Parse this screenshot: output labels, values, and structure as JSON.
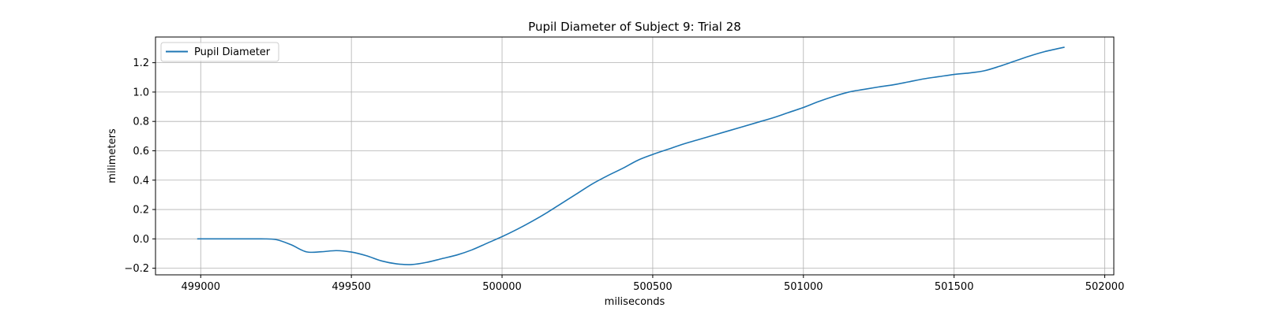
{
  "chart_data": {
    "type": "line",
    "title": "Pupil Diameter of Subject 9: Trial 28",
    "xlabel": "miliseconds",
    "ylabel": "milimeters",
    "xlim": [
      498850,
      502030
    ],
    "ylim": [
      -0.245,
      1.375
    ],
    "xticks": [
      499000,
      499500,
      500000,
      500500,
      501000,
      501500,
      502000
    ],
    "yticks": [
      -0.2,
      0.0,
      0.2,
      0.4,
      0.6,
      0.8,
      1.0,
      1.2
    ],
    "grid": true,
    "legend_position": "top-left",
    "series": [
      {
        "name": "Pupil Diameter",
        "color": "#1f77b4",
        "x": [
          498990,
          499100,
          499200,
          499250,
          499300,
          499350,
          499400,
          499450,
          499500,
          499550,
          499600,
          499650,
          499700,
          499750,
          499800,
          499850,
          499900,
          499950,
          500000,
          500050,
          500100,
          500150,
          500200,
          500250,
          500300,
          500350,
          500400,
          500450,
          500500,
          500550,
          500600,
          500650,
          500700,
          500750,
          500800,
          500850,
          500900,
          500950,
          501000,
          501050,
          501100,
          501150,
          501200,
          501250,
          501300,
          501350,
          501400,
          501450,
          501500,
          501550,
          501600,
          501650,
          501700,
          501750,
          501800,
          501865
        ],
        "y": [
          0.0,
          0.0,
          0.0,
          -0.005,
          -0.04,
          -0.088,
          -0.088,
          -0.08,
          -0.09,
          -0.115,
          -0.15,
          -0.17,
          -0.175,
          -0.16,
          -0.135,
          -0.11,
          -0.075,
          -0.03,
          0.015,
          0.065,
          0.12,
          0.18,
          0.245,
          0.31,
          0.375,
          0.43,
          0.48,
          0.535,
          0.575,
          0.61,
          0.645,
          0.675,
          0.705,
          0.735,
          0.765,
          0.795,
          0.825,
          0.86,
          0.895,
          0.935,
          0.97,
          1.0,
          1.018,
          1.035,
          1.05,
          1.07,
          1.09,
          1.105,
          1.12,
          1.13,
          1.145,
          1.175,
          1.21,
          1.245,
          1.275,
          1.305
        ]
      }
    ]
  }
}
